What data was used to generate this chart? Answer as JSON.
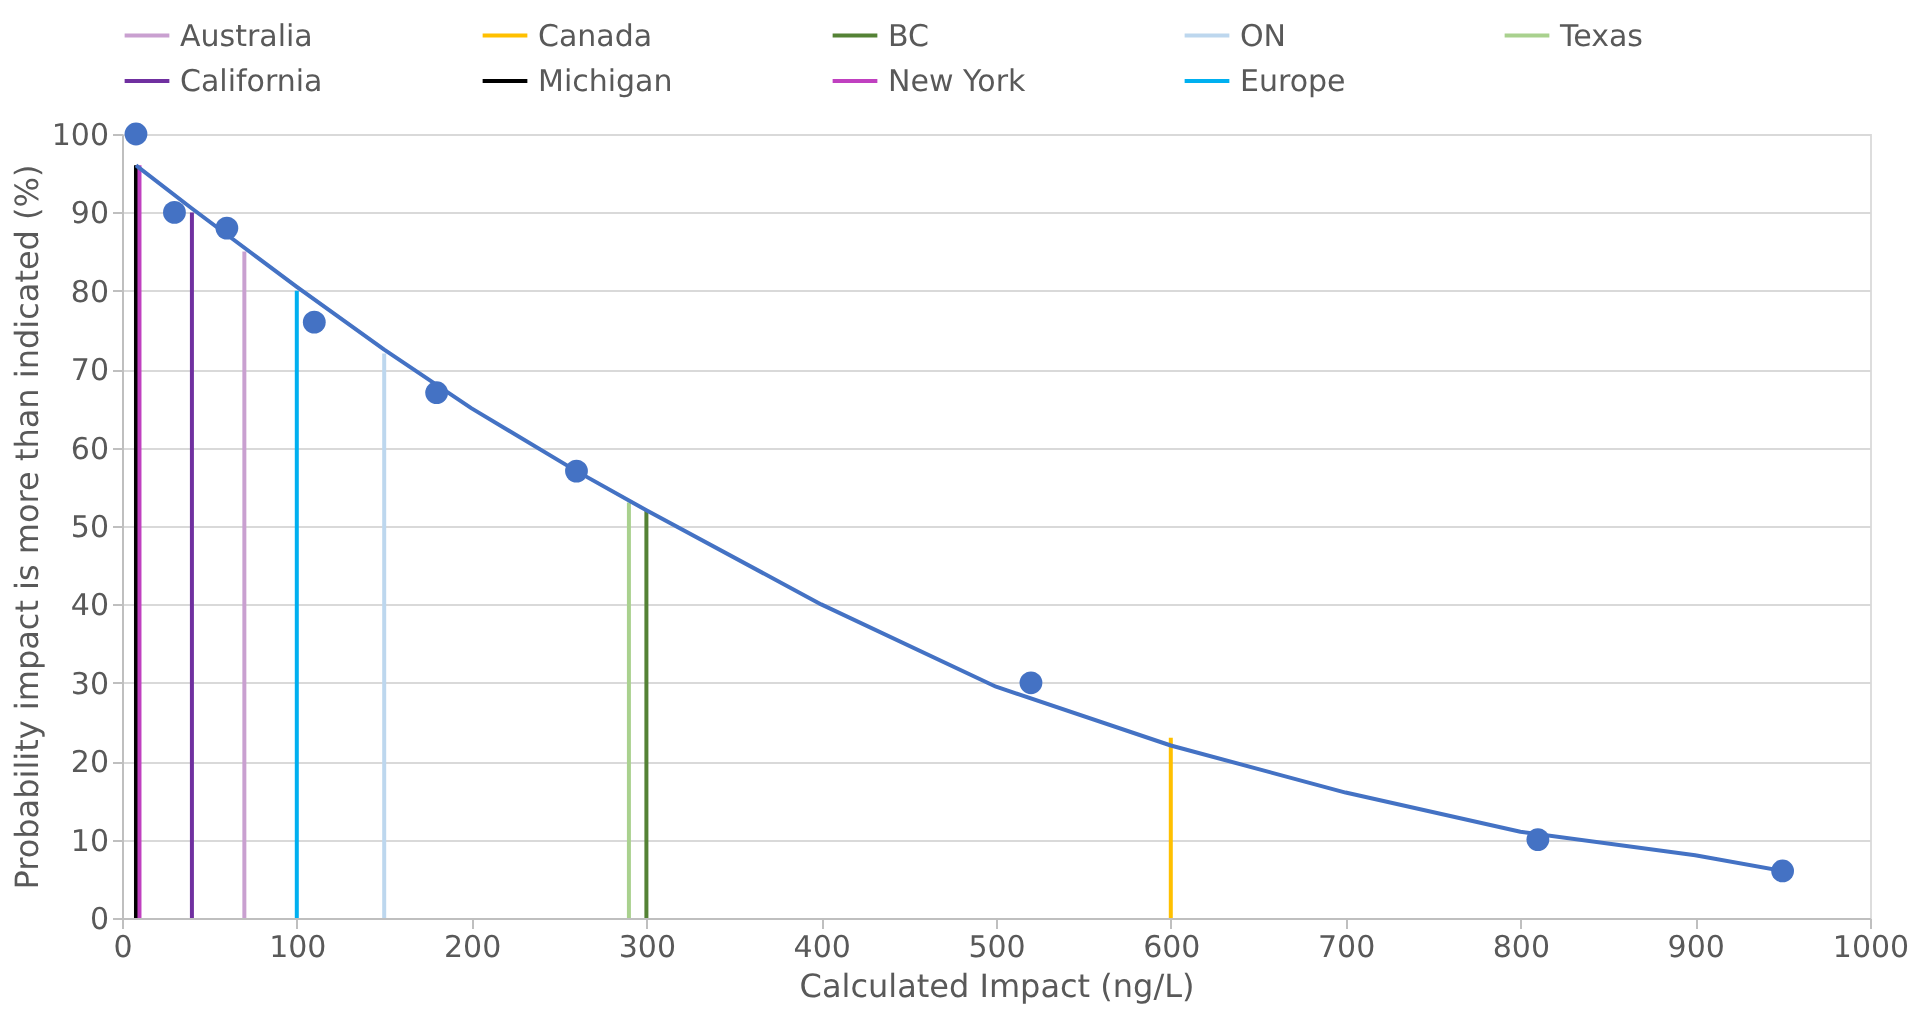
{
  "chart_data": {
    "type": "line",
    "xlabel": "Calculated Impact (ng/L)",
    "ylabel": "Probability  impact is more than indicated (%)",
    "xlim": [
      0,
      1000
    ],
    "xticks": [
      0,
      100,
      200,
      300,
      400,
      500,
      600,
      700,
      800,
      900,
      1000
    ],
    "ylim": [
      0,
      100
    ],
    "yticks": [
      0,
      10,
      20,
      30,
      40,
      50,
      60,
      70,
      80,
      90,
      100
    ],
    "grid": "y",
    "legend": "top",
    "line_style": "solid",
    "series": [
      {
        "name": "Australia",
        "color": "#c9a0d0",
        "x": [
          70,
          70
        ],
        "values": [
          0,
          85
        ]
      },
      {
        "name": "Canada",
        "color": "#ffc000",
        "x": [
          600,
          600
        ],
        "values": [
          0,
          23
        ]
      },
      {
        "name": "BC",
        "color": "#548235",
        "x": [
          300,
          300
        ],
        "values": [
          0,
          52
        ]
      },
      {
        "name": "ON",
        "color": "#bdd7ee",
        "x": [
          150,
          150
        ],
        "values": [
          0,
          72
        ]
      },
      {
        "name": "Texas",
        "color": "#a9d18e",
        "x": [
          290,
          290
        ],
        "values": [
          0,
          53
        ]
      },
      {
        "name": "California",
        "color": "#7030a0",
        "x": [
          40,
          40
        ],
        "values": [
          0,
          90
        ]
      },
      {
        "name": "Michigan",
        "color": "#000000",
        "x": [
          8,
          8
        ],
        "values": [
          0,
          96
        ]
      },
      {
        "name": "New York",
        "color": "#c040c0",
        "x": [
          10,
          10
        ],
        "values": [
          0,
          96
        ]
      },
      {
        "name": "Europe",
        "color": "#00b0f0",
        "x": [
          100,
          100
        ],
        "values": [
          0,
          80
        ]
      },
      {
        "color": "#4472c4",
        "x": [
          8,
          40,
          100,
          150,
          200,
          260,
          300,
          400,
          500,
          600,
          700,
          800,
          900,
          950
        ],
        "values": [
          96,
          90.5,
          80.5,
          72.5,
          65,
          57,
          52,
          40,
          29.5,
          22,
          16,
          11,
          8,
          6
        ]
      },
      {
        "color": "#4472c4",
        "type": "scatter",
        "marker": "circle",
        "x": [
          8,
          30,
          60,
          110,
          180,
          260,
          520,
          810,
          950
        ],
        "values": [
          100,
          90,
          88,
          76,
          67,
          57,
          30,
          10,
          6
        ]
      }
    ]
  }
}
